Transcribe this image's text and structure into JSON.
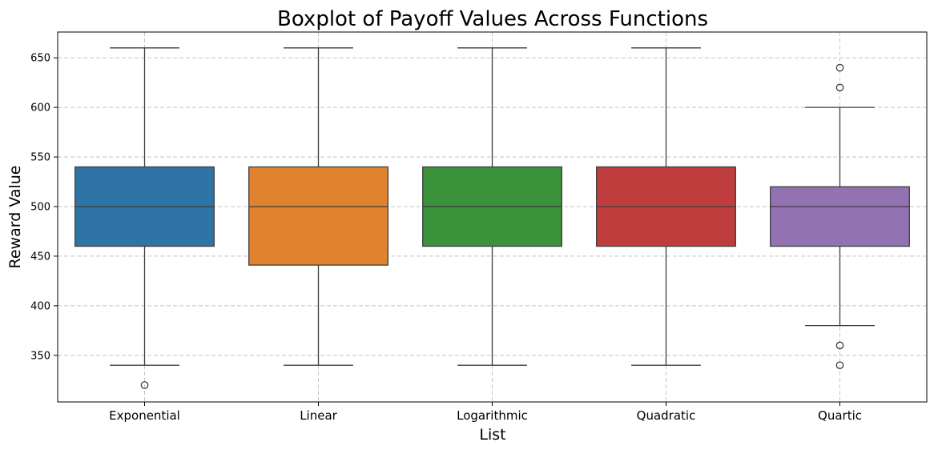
{
  "chart_data": {
    "type": "boxplot",
    "title": "Boxplot of Payoff Values Across Functions",
    "xlabel": "List",
    "ylabel": "Reward Value",
    "ylim": [
      303,
      676
    ],
    "yticks": [
      350,
      400,
      450,
      500,
      550,
      600,
      650
    ],
    "grid": true,
    "categories": [
      "Exponential",
      "Linear",
      "Logarithmic",
      "Quadratic",
      "Quartic"
    ],
    "boxes": [
      {
        "name": "Exponential",
        "color": "#2f74a6",
        "whisker_low": 340,
        "q1": 460,
        "median": 500,
        "q3": 540,
        "whisker_high": 660,
        "outliers": [
          320
        ]
      },
      {
        "name": "Linear",
        "color": "#e1822f",
        "whisker_low": 340,
        "q1": 441,
        "median": 500,
        "q3": 540,
        "whisker_high": 660,
        "outliers": []
      },
      {
        "name": "Logarithmic",
        "color": "#3a923a",
        "whisker_low": 340,
        "q1": 460,
        "median": 500,
        "q3": 540,
        "whisker_high": 660,
        "outliers": []
      },
      {
        "name": "Quadratic",
        "color": "#c03d3e",
        "whisker_low": 340,
        "q1": 460,
        "median": 500,
        "q3": 540,
        "whisker_high": 660,
        "outliers": []
      },
      {
        "name": "Quartic",
        "color": "#9372b2",
        "whisker_low": 380,
        "q1": 460,
        "median": 500,
        "q3": 520,
        "whisker_high": 600,
        "outliers": [
          340,
          360,
          620,
          640
        ]
      }
    ]
  }
}
